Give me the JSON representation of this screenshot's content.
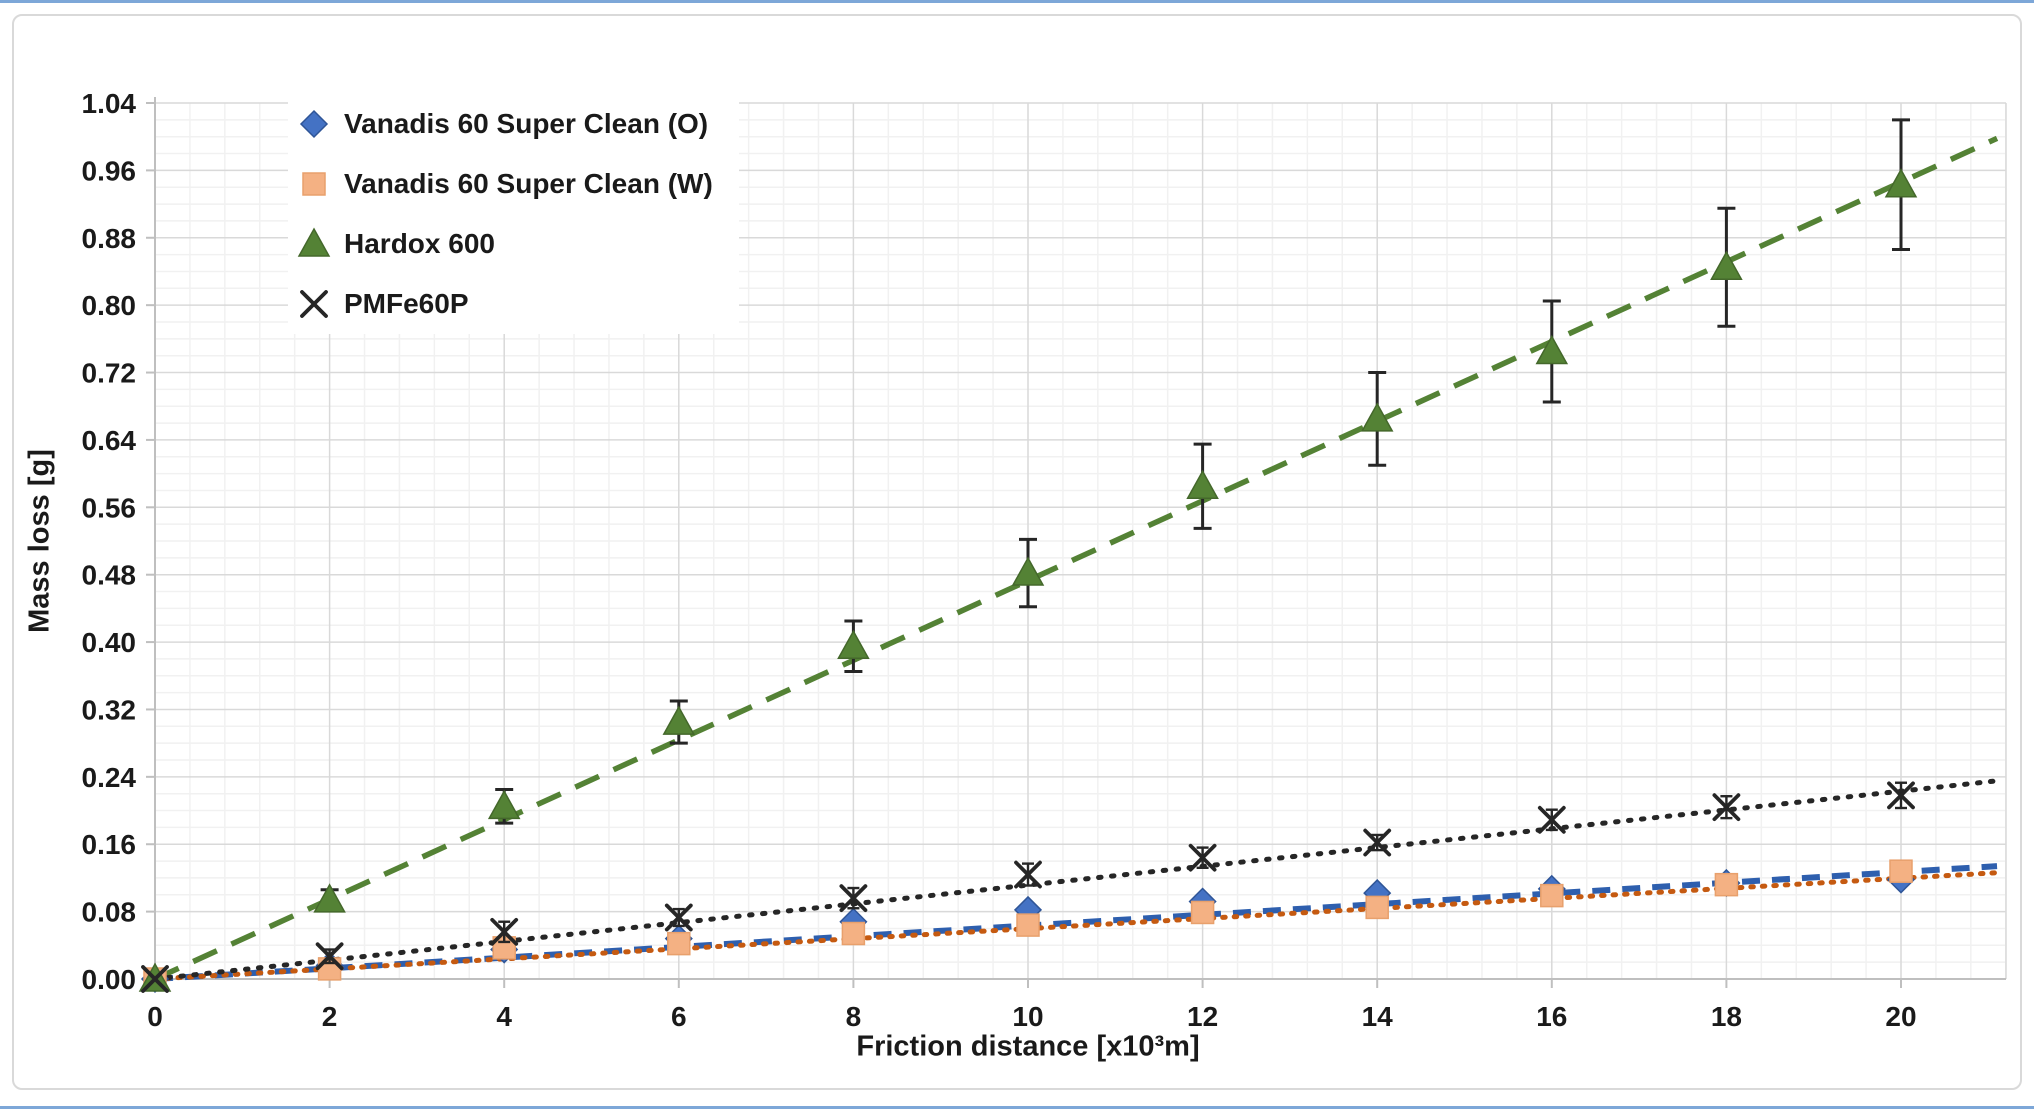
{
  "figure": {
    "x_axis_title": "Friction distance [x10³m]",
    "y_axis_title": "Mass loss [g]"
  },
  "colors": {
    "page_edge_line": "#7da7d8",
    "frame_border": "#d9d9d9",
    "grid_minor": "#f1f1f1",
    "grid_major": "#d9d9d9",
    "axis_line": "#bfbfbf",
    "tick_text": "#1a1a1a",
    "error_bar": "#262626"
  },
  "chart_data": {
    "type": "scatter",
    "title": "",
    "xlabel": "Friction distance [x10³m]",
    "ylabel": "Mass loss [g]",
    "xlim": [
      0,
      21.2
    ],
    "ylim": [
      0,
      1.04
    ],
    "grid": true,
    "legend_position": "top-left",
    "x_tick_labels": [
      "0",
      "2",
      "4",
      "6",
      "8",
      "10",
      "12",
      "14",
      "16",
      "18",
      "20"
    ],
    "y_tick_labels": [
      "0.00",
      "0.08",
      "0.16",
      "0.24",
      "0.32",
      "0.40",
      "0.48",
      "0.56",
      "0.64",
      "0.72",
      "0.80",
      "0.88",
      "0.96",
      "1.04"
    ],
    "x_minor_step": 0.4,
    "y_minor_step": 0.02,
    "x": [
      0,
      2,
      4,
      6,
      8,
      10,
      12,
      14,
      16,
      18,
      20
    ],
    "series": [
      {
        "name": "Vanadis 60 Super Clean (O)",
        "marker": "diamond",
        "color": "#4472C4",
        "marker_stroke": "#2F5597",
        "trend_color": "#2E5FAE",
        "trend_dash": [
          18,
          12
        ],
        "trend_width": 6,
        "trend_slope": 0.00635,
        "values": [
          0.0,
          0.016,
          0.035,
          0.048,
          0.068,
          0.082,
          0.092,
          0.102,
          0.107,
          0.114,
          0.118
        ],
        "errors": [
          0,
          0.005,
          0.005,
          0.006,
          0.005,
          0.006,
          0.008,
          0.006,
          0.006,
          0.005,
          0.006
        ]
      },
      {
        "name": "Vanadis 60 Super Clean (W)",
        "marker": "square",
        "color": "#F4B183",
        "marker_stroke": "#E8A06C",
        "trend_color": "#C55A11",
        "trend_dash": [
          2.5,
          9
        ],
        "trend_width": 5,
        "trend_slope": 0.00598,
        "values": [
          0.0,
          0.012,
          0.037,
          0.042,
          0.054,
          0.064,
          0.079,
          0.085,
          0.099,
          0.112,
          0.128
        ],
        "errors": [
          0,
          0.004,
          0.005,
          0.006,
          0.005,
          0.005,
          0.006,
          0.006,
          0.005,
          0.005,
          0.006
        ]
      },
      {
        "name": "Hardox 600",
        "marker": "triangle",
        "color": "#548235",
        "marker_stroke": "#44682B",
        "trend_color": "#548235",
        "trend_dash": [
          26,
          16
        ],
        "trend_width": 5.5,
        "trend_slope": 0.0473,
        "values": [
          0.0,
          0.094,
          0.205,
          0.305,
          0.395,
          0.482,
          0.585,
          0.665,
          0.745,
          0.845,
          0.943
        ],
        "errors": [
          0,
          0.012,
          0.02,
          0.025,
          0.03,
          0.04,
          0.05,
          0.055,
          0.06,
          0.07,
          0.077
        ]
      },
      {
        "name": "PMFe60P",
        "marker": "x",
        "color": "#262626",
        "marker_stroke": "#262626",
        "trend_color": "#262626",
        "trend_dash": [
          2.5,
          10.5
        ],
        "trend_width": 5,
        "trend_slope": 0.01115,
        "values": [
          0.0,
          0.027,
          0.056,
          0.073,
          0.096,
          0.124,
          0.144,
          0.162,
          0.189,
          0.204,
          0.218
        ],
        "errors": [
          0,
          0.008,
          0.012,
          0.01,
          0.012,
          0.013,
          0.012,
          0.009,
          0.012,
          0.013,
          0.015
        ]
      }
    ]
  }
}
